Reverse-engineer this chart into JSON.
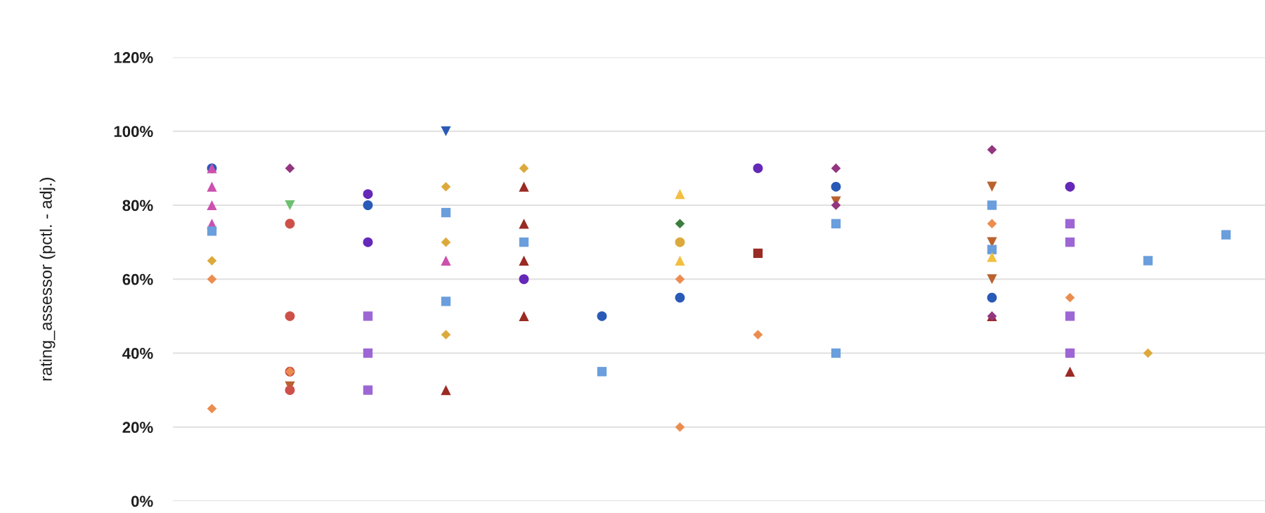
{
  "chart_data": {
    "type": "scatter",
    "ylabel": "rating_assessor (pctl. - adj.)",
    "categories": [
      null,
      null,
      null,
      null,
      null,
      null,
      null,
      null,
      null,
      null,
      null,
      null,
      null,
      null
    ],
    "ylim": [
      0,
      120
    ],
    "yticks": [
      {
        "value": 0,
        "label": "0%"
      },
      {
        "value": 20,
        "label": "20%"
      },
      {
        "value": 40,
        "label": "40%"
      },
      {
        "value": 60,
        "label": "60%"
      },
      {
        "value": 80,
        "label": "80%"
      },
      {
        "value": 100,
        "label": "100%"
      },
      {
        "value": 120,
        "label": "120%"
      }
    ],
    "grid": "y",
    "tick_labels": "y",
    "series": [
      {
        "color": "#2a5ab7",
        "marker": "circle",
        "values": [
          90,
          null,
          80,
          null,
          null,
          50,
          55,
          null,
          85,
          null,
          55,
          null,
          null,
          null
        ]
      },
      {
        "color": "#b9622f",
        "marker": "triangle-down",
        "values": [
          null,
          31,
          null,
          null,
          null,
          null,
          null,
          null,
          81,
          null,
          85,
          null,
          null,
          null
        ]
      },
      {
        "color": "#b9622f",
        "marker": "triangle-down",
        "values": [
          null,
          null,
          null,
          null,
          null,
          null,
          null,
          null,
          null,
          null,
          70,
          null,
          null,
          null
        ]
      },
      {
        "color": "#b9622f",
        "marker": "triangle-down",
        "values": [
          null,
          null,
          null,
          null,
          null,
          null,
          null,
          null,
          null,
          null,
          60,
          null,
          null,
          null
        ]
      },
      {
        "color": "#cd5049",
        "marker": "circle",
        "values": [
          null,
          75,
          null,
          null,
          null,
          null,
          null,
          null,
          null,
          null,
          null,
          null,
          null,
          null
        ]
      },
      {
        "color": "#cd5049",
        "marker": "circle",
        "values": [
          null,
          50,
          null,
          null,
          null,
          null,
          null,
          null,
          null,
          null,
          null,
          null,
          null,
          null
        ]
      },
      {
        "color": "#cd5049",
        "marker": "circle",
        "values": [
          null,
          35,
          null,
          null,
          null,
          null,
          null,
          null,
          null,
          null,
          null,
          null,
          null,
          null
        ]
      },
      {
        "color": "#cd5049",
        "marker": "circle",
        "values": [
          null,
          30,
          null,
          null,
          null,
          null,
          null,
          null,
          null,
          null,
          null,
          null,
          null,
          null
        ]
      },
      {
        "color": "#cc50ae",
        "marker": "triangle",
        "values": [
          90,
          null,
          null,
          65,
          null,
          null,
          null,
          null,
          null,
          null,
          null,
          null,
          null,
          null
        ]
      },
      {
        "color": "#cc50ae",
        "marker": "triangle",
        "values": [
          85,
          null,
          null,
          null,
          null,
          null,
          null,
          null,
          null,
          null,
          null,
          null,
          null,
          null
        ]
      },
      {
        "color": "#cc50ae",
        "marker": "triangle",
        "values": [
          80,
          null,
          null,
          null,
          null,
          null,
          null,
          null,
          null,
          null,
          null,
          null,
          null,
          null
        ]
      },
      {
        "color": "#cc50ae",
        "marker": "triangle",
        "values": [
          75,
          null,
          null,
          null,
          null,
          null,
          null,
          null,
          null,
          null,
          null,
          null,
          null,
          null
        ]
      },
      {
        "color": "#6a9edc",
        "marker": "square",
        "values": [
          73,
          null,
          null,
          78,
          70,
          35,
          null,
          null,
          75,
          null,
          80,
          null,
          65,
          72
        ]
      },
      {
        "color": "#6a9edc",
        "marker": "square",
        "values": [
          null,
          null,
          null,
          54,
          null,
          null,
          null,
          null,
          40,
          null,
          68,
          null,
          null,
          null
        ]
      },
      {
        "color": "#f2bf40",
        "marker": "triangle",
        "values": [
          null,
          null,
          null,
          null,
          null,
          null,
          83,
          null,
          null,
          null,
          66,
          null,
          null,
          null
        ]
      },
      {
        "color": "#f2bf40",
        "marker": "triangle",
        "values": [
          null,
          null,
          null,
          null,
          null,
          null,
          65,
          null,
          null,
          null,
          null,
          null,
          null,
          null
        ]
      },
      {
        "color": "#9a2a24",
        "marker": "triangle",
        "values": [
          null,
          null,
          null,
          30,
          85,
          null,
          null,
          null,
          null,
          null,
          50,
          35,
          null,
          null
        ]
      },
      {
        "color": "#9a2a24",
        "marker": "triangle",
        "values": [
          null,
          null,
          null,
          null,
          75,
          null,
          null,
          null,
          null,
          null,
          null,
          null,
          null,
          null
        ]
      },
      {
        "color": "#9a2a24",
        "marker": "triangle",
        "values": [
          null,
          null,
          null,
          null,
          65,
          null,
          null,
          null,
          null,
          null,
          null,
          null,
          null,
          null
        ]
      },
      {
        "color": "#9a2a24",
        "marker": "triangle",
        "values": [
          null,
          null,
          null,
          null,
          50,
          null,
          null,
          null,
          null,
          null,
          null,
          null,
          null,
          null
        ]
      },
      {
        "color": "#93367f",
        "marker": "diamond",
        "values": [
          null,
          90,
          null,
          null,
          null,
          null,
          null,
          null,
          90,
          null,
          95,
          null,
          null,
          null
        ]
      },
      {
        "color": "#93367f",
        "marker": "diamond",
        "values": [
          null,
          null,
          null,
          null,
          null,
          null,
          null,
          null,
          80,
          null,
          50,
          null,
          null,
          null
        ]
      },
      {
        "color": "#eb8d50",
        "marker": "diamond",
        "values": [
          60,
          35,
          null,
          null,
          null,
          null,
          60,
          45,
          null,
          null,
          75,
          55,
          null,
          null
        ]
      },
      {
        "color": "#eb8d50",
        "marker": "diamond",
        "values": [
          25,
          null,
          null,
          null,
          null,
          null,
          20,
          null,
          null,
          null,
          null,
          null,
          null,
          null
        ]
      },
      {
        "color": "#6528b8",
        "marker": "circle",
        "values": [
          null,
          null,
          83,
          null,
          60,
          null,
          null,
          90,
          null,
          null,
          null,
          85,
          null,
          null
        ]
      },
      {
        "color": "#6528b8",
        "marker": "circle",
        "values": [
          null,
          null,
          70,
          null,
          null,
          null,
          null,
          null,
          null,
          null,
          null,
          null,
          null,
          null
        ]
      },
      {
        "color": "#dcaa3c",
        "marker": "diamond",
        "values": [
          65,
          null,
          null,
          85,
          90,
          null,
          null,
          null,
          null,
          null,
          null,
          null,
          40,
          null
        ]
      },
      {
        "color": "#dcaa3c",
        "marker": "diamond",
        "values": [
          null,
          null,
          null,
          70,
          null,
          null,
          null,
          null,
          null,
          null,
          null,
          null,
          null,
          null
        ]
      },
      {
        "color": "#dcaa3c",
        "marker": "diamond",
        "values": [
          null,
          null,
          null,
          45,
          null,
          null,
          null,
          null,
          null,
          null,
          null,
          null,
          null,
          null
        ]
      },
      {
        "color": "#9d66d5",
        "marker": "square",
        "values": [
          null,
          null,
          50,
          null,
          null,
          null,
          null,
          null,
          null,
          null,
          null,
          75,
          null,
          null
        ]
      },
      {
        "color": "#9d66d5",
        "marker": "square",
        "values": [
          null,
          null,
          40,
          null,
          null,
          null,
          null,
          null,
          null,
          null,
          null,
          70,
          null,
          null
        ]
      },
      {
        "color": "#9d66d5",
        "marker": "square",
        "values": [
          null,
          null,
          30,
          null,
          null,
          null,
          null,
          null,
          null,
          null,
          null,
          50,
          null,
          null
        ]
      },
      {
        "color": "#9d66d5",
        "marker": "square",
        "values": [
          null,
          null,
          null,
          null,
          null,
          null,
          null,
          null,
          null,
          null,
          null,
          40,
          null,
          null
        ]
      },
      {
        "color": "#2a5ab7",
        "marker": "triangle-down",
        "values": [
          null,
          null,
          null,
          100,
          null,
          null,
          null,
          null,
          null,
          null,
          null,
          null,
          null,
          null
        ]
      },
      {
        "color": "#6cc070",
        "marker": "triangle-down",
        "values": [
          null,
          80,
          null,
          null,
          null,
          null,
          null,
          null,
          null,
          null,
          null,
          null,
          null,
          null
        ]
      },
      {
        "color": "#3b7d3e",
        "marker": "diamond",
        "values": [
          null,
          null,
          null,
          null,
          null,
          null,
          75,
          null,
          null,
          null,
          null,
          null,
          null,
          null
        ]
      },
      {
        "color": "#dcaa3c",
        "marker": "circle",
        "values": [
          null,
          null,
          null,
          null,
          null,
          null,
          70,
          null,
          null,
          null,
          null,
          null,
          null,
          null
        ]
      },
      {
        "color": "#9a2a24",
        "marker": "square",
        "values": [
          null,
          null,
          null,
          null,
          null,
          null,
          null,
          67,
          null,
          null,
          null,
          null,
          null,
          null
        ]
      }
    ]
  }
}
